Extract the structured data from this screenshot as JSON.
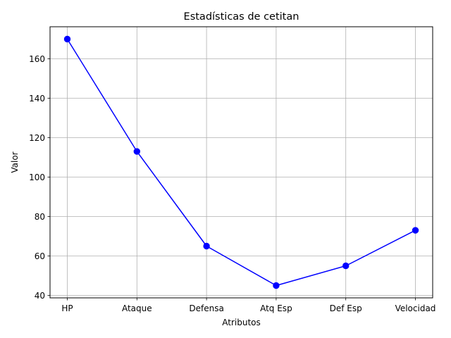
{
  "chart_data": {
    "type": "line",
    "title": "Estadísticas de cetitan",
    "xlabel": "Atributos",
    "ylabel": "Valor",
    "categories": [
      "HP",
      "Ataque",
      "Defensa",
      "Atq Esp",
      "Def Esp",
      "Velocidad"
    ],
    "series": [
      {
        "values": [
          170,
          113,
          65,
          45,
          55,
          73
        ],
        "color": "#0000ff",
        "marker": "circle"
      }
    ],
    "ylim": [
      38.75,
      176.25
    ],
    "yticks": [
      40,
      60,
      80,
      100,
      120,
      140,
      160
    ],
    "grid": true,
    "legend": "none"
  }
}
